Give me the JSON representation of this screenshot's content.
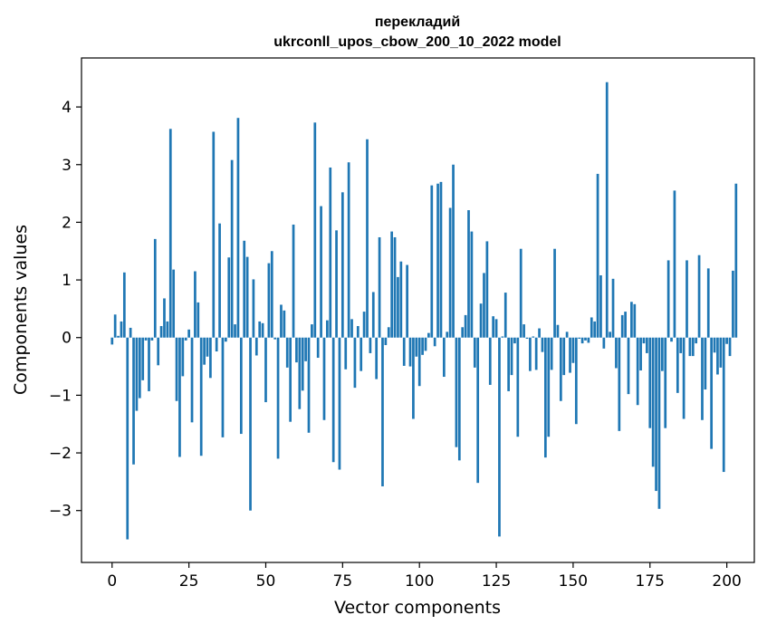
{
  "chart_data": {
    "type": "bar",
    "title": "перекладий",
    "subtitle": "ukrconll_upos_cbow_200_10_2022 model",
    "xlabel": "Vector components",
    "ylabel": "Components values",
    "xlim": [
      -9.95,
      208.95
    ],
    "ylim": [
      -3.9,
      4.85
    ],
    "xticks": [
      0,
      25,
      50,
      75,
      100,
      125,
      150,
      175,
      200
    ],
    "yticks": [
      -3,
      -2,
      -1,
      0,
      1,
      2,
      3,
      4
    ],
    "ytick_labels": [
      "−3",
      "−2",
      "−1",
      "0",
      "1",
      "2",
      "3",
      "4"
    ],
    "grid": false,
    "color": "#1f77b4",
    "values": [
      -0.12,
      0.4,
      0.03,
      0.28,
      1.13,
      -3.5,
      0.17,
      -2.2,
      -1.27,
      -1.05,
      -0.74,
      -0.05,
      -0.93,
      -0.05,
      1.71,
      -0.48,
      0.2,
      0.68,
      0.28,
      3.62,
      1.18,
      -1.1,
      -2.07,
      -0.67,
      -0.05,
      0.14,
      -1.47,
      1.15,
      0.61,
      -2.05,
      -0.47,
      -0.33,
      -0.7,
      3.57,
      -0.24,
      1.98,
      -1.73,
      -0.07,
      1.39,
      3.08,
      0.23,
      3.81,
      -1.67,
      1.68,
      1.4,
      -3.0,
      1.01,
      -0.31,
      0.28,
      0.25,
      -1.12,
      1.29,
      1.5,
      -0.03,
      -2.1,
      0.57,
      0.47,
      -0.52,
      -1.46,
      1.96,
      -0.43,
      -1.24,
      -0.92,
      -0.41,
      -1.65,
      0.23,
      3.73,
      -0.35,
      2.28,
      -1.43,
      0.3,
      2.95,
      -2.16,
      1.86,
      -2.29,
      2.52,
      -0.55,
      3.04,
      0.32,
      -0.87,
      0.2,
      -0.58,
      0.45,
      3.44,
      -0.27,
      0.79,
      -0.72,
      1.74,
      -2.58,
      -0.13,
      0.18,
      1.84,
      1.74,
      1.05,
      1.32,
      -0.49,
      1.26,
      -0.5,
      -1.41,
      -0.33,
      -0.84,
      -0.3,
      -0.23,
      0.08,
      2.64,
      -0.15,
      2.67,
      2.7,
      -0.68,
      0.1,
      2.25,
      3.0,
      -1.9,
      -2.13,
      0.18,
      0.39,
      2.21,
      1.84,
      -0.52,
      -2.52,
      0.59,
      1.12,
      1.67,
      -0.82,
      0.37,
      0.32,
      -3.45,
      0.02,
      0.78,
      -0.93,
      -0.65,
      -0.1,
      -1.72,
      1.54,
      0.23,
      -0.02,
      -0.58,
      0.02,
      -0.56,
      0.16,
      -0.25,
      -2.08,
      -1.72,
      -0.56,
      1.54,
      0.22,
      -1.1,
      -0.65,
      0.1,
      -0.61,
      -0.44,
      -1.5,
      -0.02,
      -0.1,
      -0.05,
      -0.09,
      0.35,
      0.28,
      2.84,
      1.08,
      -0.19,
      4.43,
      0.1,
      1.02,
      -0.53,
      -1.62,
      0.39,
      0.45,
      -0.98,
      0.62,
      0.58,
      -1.17,
      -0.57,
      -0.1,
      -0.27,
      -1.57,
      -2.24,
      -2.66,
      -2.97,
      -0.58,
      -1.57,
      1.34,
      -0.07,
      2.55,
      -0.96,
      -0.27,
      -1.41,
      1.34,
      -0.32,
      -0.32,
      -0.1,
      1.43,
      -1.43,
      -0.9,
      1.2,
      -1.93,
      -0.26,
      -0.64,
      -0.52,
      -2.33,
      -0.11,
      -0.32,
      1.16,
      2.67
    ]
  }
}
